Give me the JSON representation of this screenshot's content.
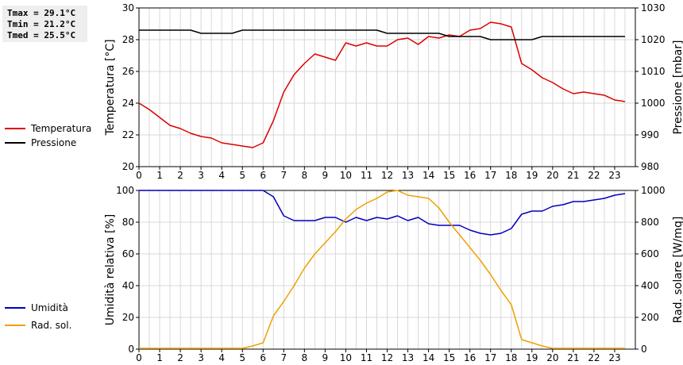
{
  "stats": {
    "tmax": "Tmax = 29.1°C",
    "tmin": "Tmin = 21.2°C",
    "tmed": "Tmed = 25.5°C"
  },
  "chart_data": [
    {
      "type": "line",
      "ylabel": "Temperatura [°C]",
      "y2label": "Pressione [mbar]",
      "xlim": [
        0,
        24
      ],
      "ylim": [
        20,
        30
      ],
      "y2lim": [
        980,
        1030
      ],
      "x_ticks": [
        "0",
        "1",
        "2",
        "3",
        "4",
        "5",
        "6",
        "7",
        "8",
        "9",
        "10",
        "11",
        "12",
        "13",
        "14",
        "15",
        "16",
        "17",
        "18",
        "19",
        "20",
        "21",
        "22",
        "23"
      ],
      "y_ticks": [
        "20",
        "22",
        "24",
        "26",
        "28",
        "30"
      ],
      "y2_ticks": [
        "980",
        "990",
        "1000",
        "1010",
        "1020",
        "1030"
      ],
      "grid": true,
      "legend_position": "left",
      "series": [
        {
          "name": "Temperatura",
          "axis": "left",
          "color": "#dd0000",
          "x": [
            0,
            0.5,
            1,
            1.5,
            2,
            2.5,
            3,
            3.5,
            4,
            4.5,
            5,
            5.5,
            6,
            6.5,
            7,
            7.5,
            8,
            8.5,
            9,
            9.5,
            10,
            10.5,
            11,
            11.5,
            12,
            12.5,
            13,
            13.5,
            14,
            14.5,
            15,
            15.5,
            16,
            16.5,
            17,
            17.5,
            18,
            18.5,
            19,
            19.5,
            20,
            20.5,
            21,
            21.5,
            22,
            22.5,
            23,
            23.5
          ],
          "y": [
            24.0,
            23.6,
            23.1,
            22.6,
            22.4,
            22.1,
            21.9,
            21.8,
            21.5,
            21.4,
            21.3,
            21.2,
            21.5,
            22.9,
            24.7,
            25.8,
            26.5,
            27.1,
            26.9,
            26.7,
            27.8,
            27.6,
            27.8,
            27.6,
            27.6,
            28.0,
            28.1,
            27.7,
            28.2,
            28.1,
            28.3,
            28.2,
            28.6,
            28.7,
            29.1,
            29.0,
            28.8,
            26.5,
            26.1,
            25.6,
            25.3,
            24.9,
            24.6,
            24.7,
            24.6,
            24.5,
            24.2,
            24.1
          ]
        },
        {
          "name": "Pressione",
          "axis": "right",
          "color": "#000000",
          "x": [
            0,
            0.5,
            1,
            1.5,
            2,
            2.5,
            3,
            3.5,
            4,
            4.5,
            5,
            5.5,
            6,
            6.5,
            7,
            7.5,
            8,
            8.5,
            9,
            9.5,
            10,
            10.5,
            11,
            11.5,
            12,
            12.5,
            13,
            13.5,
            14,
            14.5,
            15,
            15.5,
            16,
            16.5,
            17,
            17.5,
            18,
            18.5,
            19,
            19.5,
            20,
            20.5,
            21,
            21.5,
            22,
            22.5,
            23,
            23.5
          ],
          "y": [
            1023,
            1023,
            1023,
            1023,
            1023,
            1023,
            1022,
            1022,
            1022,
            1022,
            1023,
            1023,
            1023,
            1023,
            1023,
            1023,
            1023,
            1023,
            1023,
            1023,
            1023,
            1023,
            1023,
            1023,
            1022,
            1022,
            1022,
            1022,
            1022,
            1022,
            1021,
            1021,
            1021,
            1021,
            1020,
            1020,
            1020,
            1020,
            1020,
            1021,
            1021,
            1021,
            1021,
            1021,
            1021,
            1021,
            1021,
            1021
          ]
        }
      ]
    },
    {
      "type": "line",
      "ylabel": "Umidità relativa [%]",
      "y2label": "Rad. solare [W/mq]",
      "xlim": [
        0,
        24
      ],
      "ylim": [
        0,
        100
      ],
      "y2lim": [
        0,
        1000
      ],
      "x_ticks": [
        "0",
        "1",
        "2",
        "3",
        "4",
        "5",
        "6",
        "7",
        "8",
        "9",
        "10",
        "11",
        "12",
        "13",
        "14",
        "15",
        "16",
        "17",
        "18",
        "19",
        "20",
        "21",
        "22",
        "23"
      ],
      "y_ticks": [
        "0",
        "20",
        "40",
        "60",
        "80",
        "100"
      ],
      "y2_ticks": [
        "0",
        "200",
        "400",
        "600",
        "800",
        "1000"
      ],
      "grid": true,
      "legend_position": "left",
      "series": [
        {
          "name": "Umidità",
          "axis": "left",
          "color": "#0000bb",
          "x": [
            0,
            0.5,
            1,
            1.5,
            2,
            2.5,
            3,
            3.5,
            4,
            4.5,
            5,
            5.5,
            6,
            6.5,
            7,
            7.5,
            8,
            8.5,
            9,
            9.5,
            10,
            10.5,
            11,
            11.5,
            12,
            12.5,
            13,
            13.5,
            14,
            14.5,
            15,
            15.5,
            16,
            16.5,
            17,
            17.5,
            18,
            18.5,
            19,
            19.5,
            20,
            20.5,
            21,
            21.5,
            22,
            22.5,
            23,
            23.5
          ],
          "y": [
            100,
            100,
            100,
            100,
            100,
            100,
            100,
            100,
            100,
            100,
            100,
            100,
            100,
            96,
            84,
            81,
            81,
            81,
            83,
            83,
            80,
            83,
            81,
            83,
            82,
            84,
            81,
            83,
            79,
            78,
            78,
            78,
            75,
            73,
            72,
            73,
            76,
            85,
            87,
            87,
            90,
            91,
            93,
            93,
            94,
            95,
            97,
            98
          ]
        },
        {
          "name": "Rad. sol.",
          "axis": "right",
          "color": "#f0a000",
          "x": [
            0,
            0.5,
            1,
            1.5,
            2,
            2.5,
            3,
            3.5,
            4,
            4.5,
            5,
            5.5,
            6,
            6.5,
            7,
            7.5,
            8,
            8.5,
            9,
            9.5,
            10,
            10.5,
            11,
            11.5,
            12,
            12.5,
            13,
            13.5,
            14,
            14.5,
            15,
            15.5,
            16,
            16.5,
            17,
            17.5,
            18,
            18.5,
            19,
            19.5,
            20,
            20.5,
            21,
            21.5,
            22,
            22.5,
            23,
            23.5
          ],
          "y": [
            5,
            5,
            5,
            5,
            5,
            5,
            5,
            5,
            5,
            5,
            5,
            20,
            40,
            210,
            300,
            400,
            510,
            600,
            670,
            740,
            820,
            880,
            920,
            950,
            990,
            1000,
            970,
            960,
            950,
            890,
            800,
            720,
            640,
            560,
            470,
            370,
            280,
            60,
            40,
            20,
            5,
            5,
            5,
            5,
            5,
            5,
            5,
            5
          ]
        }
      ]
    }
  ]
}
